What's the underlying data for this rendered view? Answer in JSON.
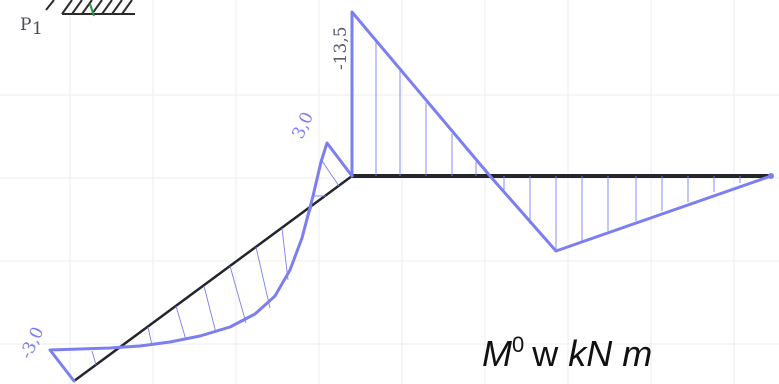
{
  "support": {
    "label": "P",
    "label_sub": "1"
  },
  "labels": {
    "peak_top": "-13,5",
    "peak_mid": "3,0",
    "peak_left": "-3,0"
  },
  "caption": {
    "symbol": "M",
    "superscript": "0",
    "word": "w",
    "unit_kn": "kN",
    "unit_m": "m"
  },
  "colors": {
    "moment_outline": "#7c7ff0",
    "beam": "#23262b",
    "grid": "#eceef0",
    "support_green": "#2f9a46"
  }
}
